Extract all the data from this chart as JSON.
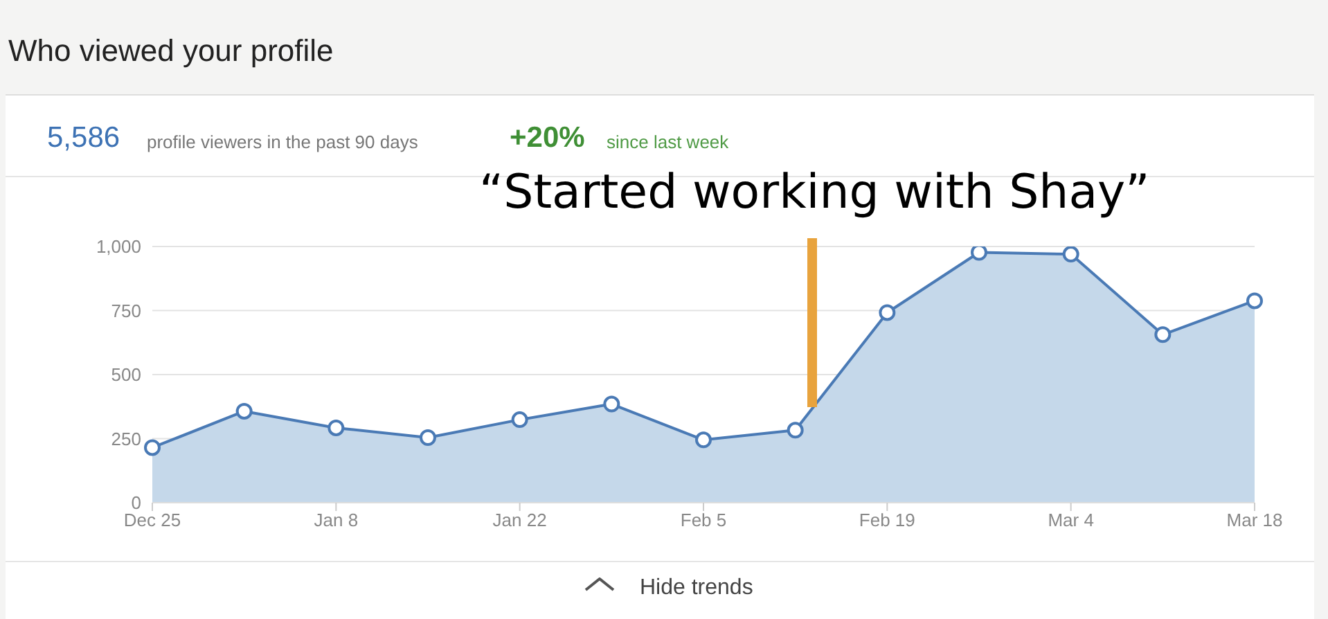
{
  "chart_data": {
    "type": "area",
    "title": "Who viewed your profile",
    "annotations": [
      "5,586",
      "profile viewers in the past 90 days",
      "+20%",
      "since last week",
      "“Started working with Shay”",
      "Hide trends"
    ],
    "categories": [
      "Dec 25",
      null,
      "Jan 8",
      null,
      "Jan 22",
      null,
      "Feb 5",
      null,
      "Feb 19",
      null,
      "Mar 4",
      null,
      "Mar 18"
    ],
    "series": [
      {
        "color": "#4a7ab5",
        "values": [
          215,
          357,
          292,
          254,
          324,
          385,
          245,
          283,
          742,
          977,
          970,
          656,
          788
        ]
      }
    ],
    "ylim": [
      0,
      1000
    ],
    "yticks": [
      0,
      250,
      500,
      750,
      {
        "value": 1000,
        "label": "1,000"
      }
    ],
    "grid": "y",
    "marker": "circle",
    "line_style": "solid",
    "legend": false
  }
}
